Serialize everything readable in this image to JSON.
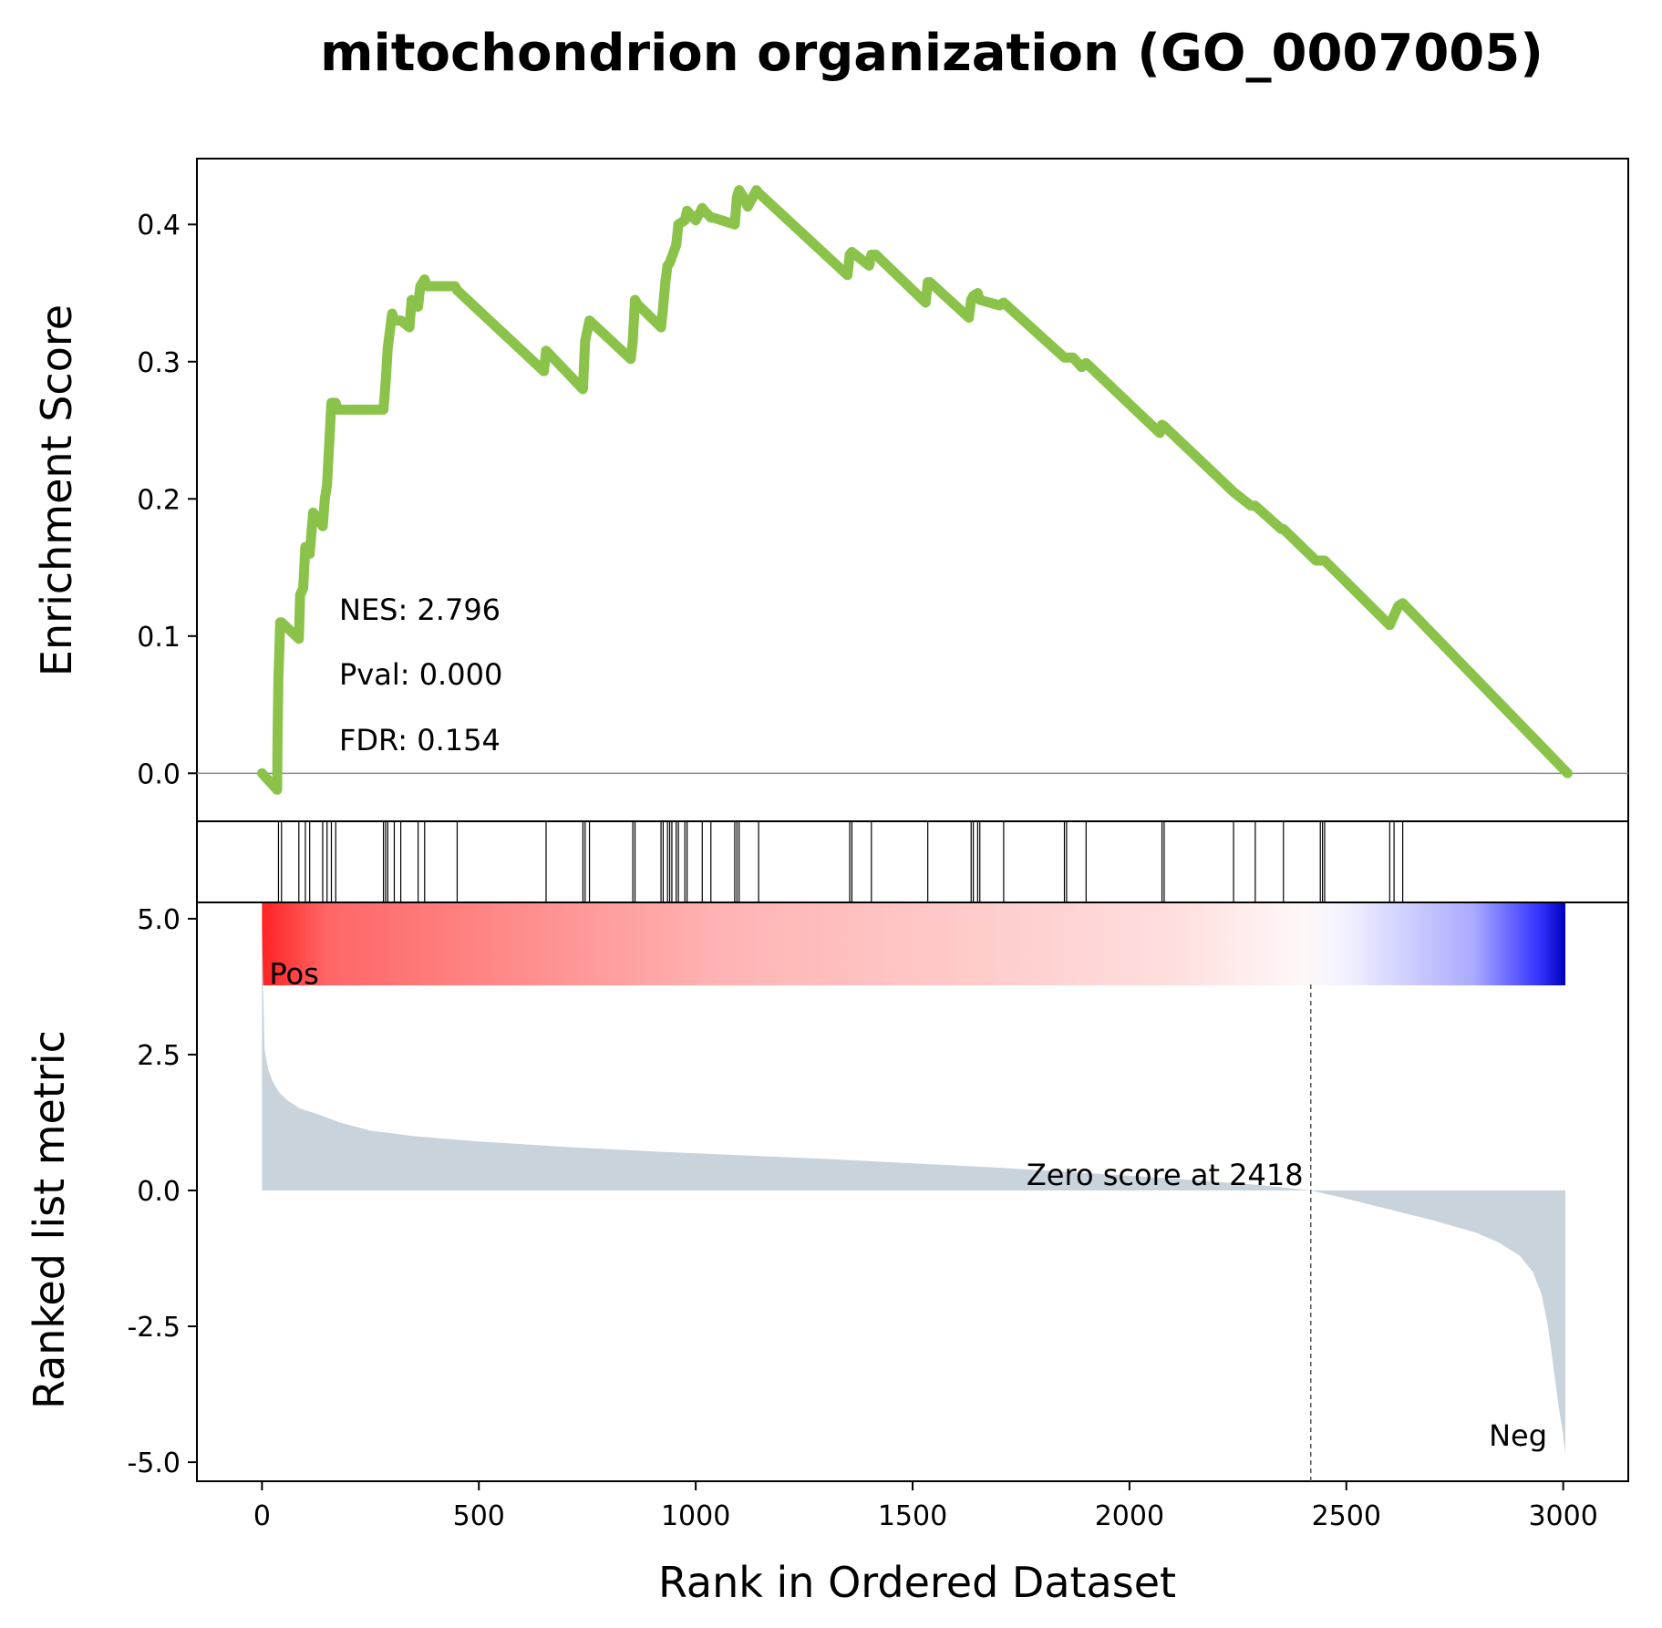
{
  "chart_data": {
    "type": "line",
    "title": "mitochondrion organization (GO_0007005)",
    "xlabel": "Rank in Ordered Dataset",
    "xlim": [
      -150,
      3150
    ],
    "xticks": [
      0,
      500,
      1000,
      1500,
      2000,
      2500,
      3000
    ],
    "xtick_labels": [
      "0",
      "500",
      "1000",
      "1500",
      "2000",
      "2500",
      "3000"
    ],
    "colors": {
      "es_line": "#8bc34a",
      "metric_fill": "#c8d3dc",
      "pos_label": "#ff0000",
      "neg_label": "#0000ff"
    },
    "enrichment": {
      "ylabel": "Enrichment Score",
      "ylim": [
        -0.035,
        0.448
      ],
      "yticks": [
        0.0,
        0.1,
        0.2,
        0.3,
        0.4
      ],
      "ytick_labels": [
        "0.0",
        "0.1",
        "0.2",
        "0.3",
        "0.4"
      ],
      "stats": {
        "nes": "NES: 2.796",
        "pval": "Pval: 0.000",
        "fdr": "FDR: 0.154"
      },
      "x": [
        0,
        35,
        36,
        38,
        40,
        42,
        45,
        85,
        88,
        95,
        100,
        110,
        118,
        140,
        145,
        150,
        155,
        160,
        170,
        175,
        280,
        285,
        290,
        300,
        305,
        320,
        340,
        345,
        360,
        365,
        375,
        380,
        445,
        450,
        650,
        655,
        740,
        745,
        755,
        850,
        855,
        860,
        865,
        920,
        925,
        930,
        935,
        940,
        955,
        960,
        975,
        980,
        1000,
        1015,
        1020,
        1035,
        1040,
        1090,
        1095,
        1100,
        1110,
        1120,
        1140,
        1145,
        1350,
        1355,
        1360,
        1400,
        1405,
        1415,
        1530,
        1535,
        1540,
        1630,
        1635,
        1640,
        1650,
        1655,
        1700,
        1710,
        1850,
        1855,
        1870,
        1890,
        1900,
        2070,
        2075,
        2080,
        2230,
        2240,
        2280,
        2290,
        2350,
        2355,
        2430,
        2440,
        2450,
        2600,
        2610,
        2620,
        2630,
        3010
      ],
      "y": [
        0.0,
        -0.012,
        0.03,
        0.07,
        0.09,
        0.11,
        0.11,
        0.098,
        0.13,
        0.135,
        0.165,
        0.16,
        0.19,
        0.18,
        0.2,
        0.21,
        0.24,
        0.27,
        0.27,
        0.265,
        0.265,
        0.285,
        0.31,
        0.335,
        0.33,
        0.33,
        0.325,
        0.345,
        0.34,
        0.355,
        0.36,
        0.355,
        0.355,
        0.352,
        0.293,
        0.308,
        0.28,
        0.315,
        0.33,
        0.302,
        0.315,
        0.345,
        0.342,
        0.325,
        0.34,
        0.358,
        0.37,
        0.372,
        0.385,
        0.4,
        0.403,
        0.41,
        0.403,
        0.412,
        0.41,
        0.405,
        0.405,
        0.4,
        0.42,
        0.425,
        0.42,
        0.413,
        0.425,
        0.423,
        0.363,
        0.378,
        0.38,
        0.37,
        0.378,
        0.378,
        0.343,
        0.358,
        0.358,
        0.332,
        0.345,
        0.348,
        0.35,
        0.345,
        0.341,
        0.343,
        0.303,
        0.303,
        0.303,
        0.296,
        0.299,
        0.248,
        0.254,
        0.253,
        0.208,
        0.205,
        0.195,
        0.195,
        0.178,
        0.178,
        0.155,
        0.155,
        0.155,
        0.108,
        0.115,
        0.122,
        0.124,
        0.0
      ]
    },
    "hits": [
      38,
      45,
      85,
      100,
      110,
      140,
      150,
      160,
      170,
      280,
      285,
      290,
      305,
      320,
      360,
      375,
      450,
      655,
      740,
      745,
      755,
      855,
      860,
      920,
      925,
      935,
      940,
      945,
      955,
      960,
      975,
      980,
      1015,
      1035,
      1090,
      1095,
      1100,
      1145,
      1355,
      1360,
      1405,
      1535,
      1635,
      1640,
      1650,
      1655,
      1710,
      1850,
      1855,
      1900,
      2075,
      2080,
      2240,
      2290,
      2355,
      2440,
      2445,
      2450,
      2600,
      2610,
      2630
    ],
    "metric": {
      "ylabel": "Ranked list metric",
      "ylim": [
        -5.35,
        5.3
      ],
      "yticks": [
        5.0,
        2.5,
        0.0,
        -2.5,
        -5.0
      ],
      "ytick_labels": [
        "5.0",
        "2.5",
        "0.0",
        "-2.5",
        "-5.0"
      ],
      "pos_label": "Pos",
      "neg_label": "Neg",
      "zero_cross": 2418,
      "zero_label": "Zero score at 2418",
      "x": [
        0,
        3,
        6,
        10,
        15,
        25,
        40,
        60,
        90,
        130,
        180,
        250,
        350,
        500,
        700,
        900,
        1100,
        1300,
        1500,
        1700,
        1900,
        2100,
        2300,
        2418,
        2500,
        2600,
        2700,
        2800,
        2850,
        2900,
        2930,
        2950,
        2965,
        2980,
        2990,
        3000,
        3005
      ],
      "y": [
        4.9,
        3.6,
        2.6,
        2.4,
        2.2,
        2.0,
        1.8,
        1.65,
        1.5,
        1.4,
        1.25,
        1.1,
        1.0,
        0.9,
        0.8,
        0.72,
        0.65,
        0.58,
        0.5,
        0.42,
        0.32,
        0.22,
        0.1,
        0.0,
        -0.15,
        -0.35,
        -0.55,
        -0.78,
        -0.95,
        -1.2,
        -1.5,
        -1.9,
        -2.5,
        -3.4,
        -4.0,
        -4.5,
        -4.85
      ]
    }
  }
}
